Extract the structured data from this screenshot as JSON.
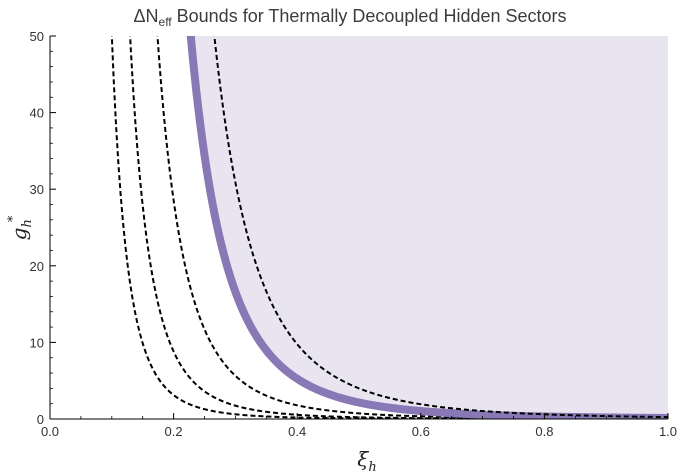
{
  "chart_data": {
    "type": "line",
    "title": {
      "prefix": "ΔN",
      "subscript": "eff",
      "suffix": " Bounds for Thermally Decoupled Hidden Sectors"
    },
    "xlabel": {
      "base": "ξ",
      "subscript": "h"
    },
    "ylabel": {
      "base": "g",
      "subscript": "h",
      "superscript": "*"
    },
    "xlim": [
      0.0,
      1.0
    ],
    "ylim": [
      0,
      50
    ],
    "x_ticks": [
      "0.0",
      "0.2",
      "0.4",
      "0.6",
      "0.8",
      "1.0"
    ],
    "y_ticks": [
      "0",
      "10",
      "20",
      "30",
      "40",
      "50"
    ],
    "relation": "g_h* = C / ξ_h^4",
    "series": [
      {
        "style": "dashed",
        "C": 0.005,
        "points": [
          [
            0.0973,
            50
          ],
          [
            0.12,
            24.1
          ],
          [
            0.15,
            9.88
          ],
          [
            0.2,
            3.13
          ],
          [
            0.3,
            0.62
          ],
          [
            0.5,
            0.08
          ],
          [
            1.0,
            0.005
          ]
        ]
      },
      {
        "style": "dashed",
        "C": 0.0141,
        "points": [
          [
            0.1296,
            50
          ],
          [
            0.15,
            27.9
          ],
          [
            0.2,
            8.81
          ],
          [
            0.3,
            1.74
          ],
          [
            0.5,
            0.23
          ],
          [
            1.0,
            0.014
          ]
        ]
      },
      {
        "style": "dashed",
        "C": 0.0457,
        "points": [
          [
            0.1739,
            50
          ],
          [
            0.2,
            28.6
          ],
          [
            0.3,
            5.64
          ],
          [
            0.4,
            1.79
          ],
          [
            0.6,
            0.35
          ],
          [
            1.0,
            0.046
          ]
        ]
      },
      {
        "style": "thick-band",
        "C": 0.1345,
        "points": [
          [
            0.2275,
            50
          ],
          [
            0.25,
            34.4
          ],
          [
            0.3,
            16.6
          ],
          [
            0.4,
            5.25
          ],
          [
            0.6,
            1.04
          ],
          [
            1.0,
            0.13
          ]
        ]
      },
      {
        "style": "dashed",
        "C": 0.25,
        "points": [
          [
            0.2659,
            50
          ],
          [
            0.3,
            30.9
          ],
          [
            0.4,
            9.77
          ],
          [
            0.6,
            1.93
          ],
          [
            0.8,
            0.61
          ],
          [
            1.0,
            0.25
          ]
        ]
      }
    ],
    "shaded_region": {
      "bounded_by": "thick-band",
      "side": "above-right",
      "color": "#e8e5f0"
    },
    "colors": {
      "band": "#8878b6",
      "dashed": "#000000",
      "shade": "#e8e5f0",
      "axis": "#000000"
    },
    "grid": false,
    "legend": "none"
  }
}
